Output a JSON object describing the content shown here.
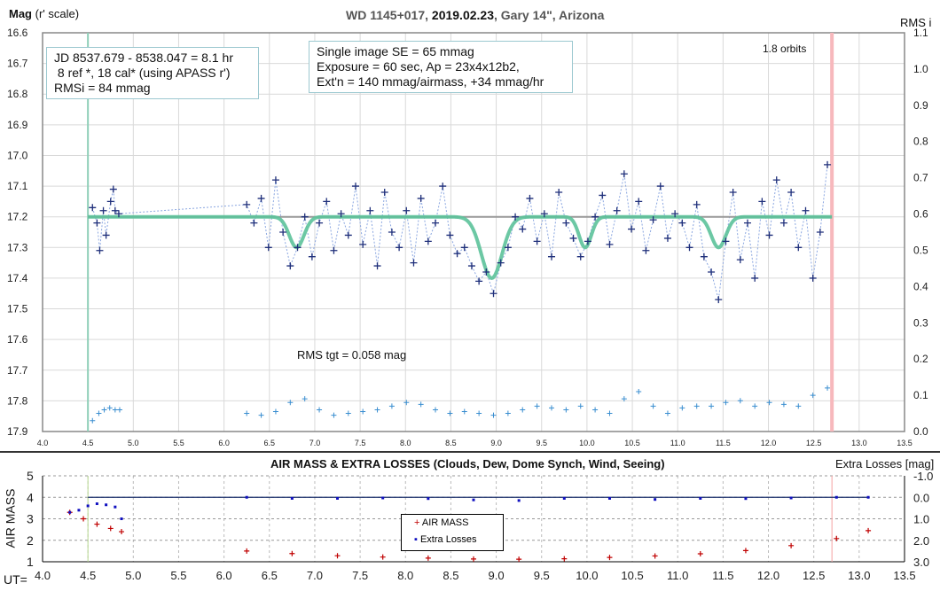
{
  "chart_data": [
    {
      "type": "scatter",
      "title_parts": [
        "WD 1145+017, ",
        "2019.02.23",
        ", Gary 14\", Arizona"
      ],
      "ylabel": "Mag",
      "ylabel_suffix": "(r' scale)",
      "y2label": "RMS i",
      "ylim": [
        16.6,
        17.9
      ],
      "y2lim": [
        0.0,
        1.1
      ],
      "xlim": [
        4.0,
        13.5
      ],
      "xticks": [
        "4.0",
        "4.5",
        "5.0",
        "5.5",
        "6.0",
        "6.5",
        "7.0",
        "7.5",
        "8.0",
        "8.5",
        "9.0",
        "9.5",
        "10.0",
        "10.5",
        "11.0",
        "11.5",
        "12.0",
        "12.5",
        "13.0",
        "13.5"
      ],
      "yticks": [
        "16.6",
        "16.7",
        "16.8",
        "16.9",
        "17.0",
        "17.1",
        "17.2",
        "17.3",
        "17.4",
        "17.5",
        "17.6",
        "17.7",
        "17.8",
        "17.9"
      ],
      "y2ticks": [
        "1.1",
        "1.0",
        "0.9",
        "0.8",
        "0.7",
        "0.6",
        "0.5",
        "0.4",
        "0.3",
        "0.2",
        "0.1",
        "0.0"
      ],
      "grid": true,
      "markers": {
        "start_ut": 4.5,
        "end_ut": 12.7
      },
      "annotations": {
        "box1": [
          "JD 8537.679 - 8538.047 = 8.1 hr",
          " 8 ref *, 18 cal* (using APASS r')",
          "RMSi = 84 mmag"
        ],
        "box2": [
          "Single image SE = 65 mmag",
          "Exposure = 60 sec, Ap = 23x4x12b2,",
          "Ext'n = 140 mmag/airmass, +34 mmag/hr"
        ],
        "orbits": "1.8 orbits",
        "rms_tgt": "RMS tgt = 0.058 mag"
      },
      "model": {
        "baseline": 17.2,
        "x_range": [
          4.5,
          12.7
        ],
        "dips": [
          {
            "center": 6.8,
            "depth": 0.1,
            "width": 0.12
          },
          {
            "center": 8.95,
            "depth": 0.2,
            "width": 0.17
          },
          {
            "center": 9.98,
            "depth": 0.1,
            "width": 0.1
          },
          {
            "center": 11.45,
            "depth": 0.1,
            "width": 0.12
          }
        ]
      },
      "mag_seg1": {
        "x": [
          4.55,
          4.6,
          4.63,
          4.67,
          4.7,
          4.75,
          4.78,
          4.8,
          4.84
        ],
        "y": [
          17.17,
          17.22,
          17.31,
          17.18,
          17.26,
          17.15,
          17.11,
          17.18,
          17.19
        ]
      },
      "mag_seg2": {
        "x_start": 6.25,
        "x_step": 0.08,
        "y": [
          17.16,
          17.22,
          17.14,
          17.3,
          17.08,
          17.25,
          17.36,
          17.3,
          17.2,
          17.33,
          17.22,
          17.15,
          17.31,
          17.19,
          17.26,
          17.1,
          17.29,
          17.18,
          17.36,
          17.12,
          17.25,
          17.3,
          17.18,
          17.35,
          17.14,
          17.28,
          17.22,
          17.1,
          17.26,
          17.32,
          17.3,
          17.36,
          17.41,
          17.38,
          17.45,
          17.35,
          17.3,
          17.2,
          17.24,
          17.14,
          17.28,
          17.19,
          17.33,
          17.12,
          17.22,
          17.27,
          17.33,
          17.28,
          17.2,
          17.13,
          17.29,
          17.18,
          17.06,
          17.24,
          17.15,
          17.31,
          17.21,
          17.1,
          17.27,
          17.19,
          17.22,
          17.3,
          17.16,
          17.33,
          17.38,
          17.47,
          17.28,
          17.12,
          17.34,
          17.22,
          17.4,
          17.15,
          17.26,
          17.08,
          17.22,
          17.12,
          17.3,
          17.18,
          17.4,
          17.25,
          17.03
        ]
      },
      "rms_seg1": {
        "x": [
          4.55,
          4.62,
          4.68,
          4.74,
          4.8,
          4.85
        ],
        "y": [
          0.03,
          0.05,
          0.06,
          0.065,
          0.06,
          0.06
        ]
      },
      "rms_seg2": {
        "x_start": 6.25,
        "x_step": 0.16,
        "y": [
          0.05,
          0.045,
          0.055,
          0.08,
          0.09,
          0.06,
          0.045,
          0.05,
          0.055,
          0.06,
          0.07,
          0.08,
          0.075,
          0.06,
          0.05,
          0.055,
          0.05,
          0.045,
          0.05,
          0.06,
          0.07,
          0.065,
          0.06,
          0.07,
          0.06,
          0.05,
          0.09,
          0.11,
          0.07,
          0.05,
          0.065,
          0.07,
          0.07,
          0.08,
          0.085,
          0.07,
          0.08,
          0.075,
          0.07,
          0.1,
          0.12
        ]
      }
    },
    {
      "type": "scatter",
      "title": "AIR MASS & EXTRA LOSSES (Clouds, Dew, Dome Synch, Wind, Seeing)",
      "ylabel": "AIR MASS",
      "y2label": "Extra Losses [mag]",
      "xlabel_prefix": "UT=",
      "ylim": [
        1,
        5
      ],
      "y2lim": [
        3.0,
        -1.0
      ],
      "yticks": [
        "5",
        "4",
        "3",
        "2",
        "1"
      ],
      "y2ticks": [
        "-1.0",
        "0.0",
        "1.0",
        "2.0",
        "3.0"
      ],
      "legend": [
        "AIR MASS",
        "Extra Losses"
      ],
      "legend_position": "center",
      "airmass": {
        "x": [
          4.3,
          4.45,
          4.6,
          4.75,
          4.87,
          6.25,
          6.75,
          7.25,
          7.75,
          8.25,
          8.75,
          9.25,
          9.75,
          10.25,
          10.75,
          11.25,
          11.75,
          12.25,
          12.75,
          13.1
        ],
        "y": [
          3.3,
          3.0,
          2.75,
          2.55,
          2.4,
          1.5,
          1.38,
          1.28,
          1.22,
          1.17,
          1.13,
          1.12,
          1.14,
          1.2,
          1.27,
          1.37,
          1.52,
          1.75,
          2.08,
          2.45
        ]
      },
      "extra_losses": {
        "x": [
          4.3,
          4.4,
          4.5,
          4.6,
          4.7,
          4.8,
          4.87,
          6.25,
          6.75,
          7.25,
          7.75,
          8.25,
          8.75,
          9.25,
          9.75,
          10.25,
          10.75,
          11.25,
          11.75,
          12.25,
          12.75,
          13.1
        ],
        "y": [
          0.7,
          0.6,
          0.4,
          0.3,
          0.35,
          0.45,
          1.0,
          0.0,
          0.05,
          0.05,
          0.03,
          0.06,
          0.12,
          0.15,
          0.05,
          0.05,
          0.1,
          0.05,
          0.06,
          0.03,
          0.0,
          0.0
        ]
      }
    }
  ]
}
